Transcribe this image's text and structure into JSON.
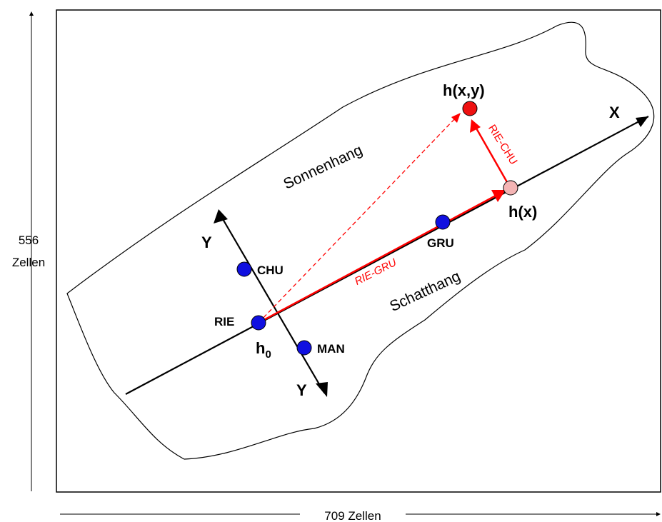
{
  "dimensions": {
    "height_label": "556",
    "height_unit": "Zellen",
    "width_label": "709 Zellen"
  },
  "regions": {
    "sun_slope": "Sonnenhang",
    "shade_slope": "Schatthang"
  },
  "axes": {
    "x": "X",
    "y_top": "Y",
    "y_bottom": "Y"
  },
  "stations": [
    {
      "name": "CHU"
    },
    {
      "name": "RIE"
    },
    {
      "name": "MAN"
    },
    {
      "name": "GRU"
    }
  ],
  "points": {
    "origin_main": "h",
    "origin_sub": "0",
    "hx": "h(x)",
    "hxy": "h(x,y)"
  },
  "vectors": {
    "rie_gru": "RIE-GRU",
    "rie_chu": "RIE-CHU"
  },
  "colors": {
    "station": "#1010e0",
    "vector": "#ff0000",
    "hx_point": "#f4b4b4",
    "hxy_point": "#ee1111"
  }
}
